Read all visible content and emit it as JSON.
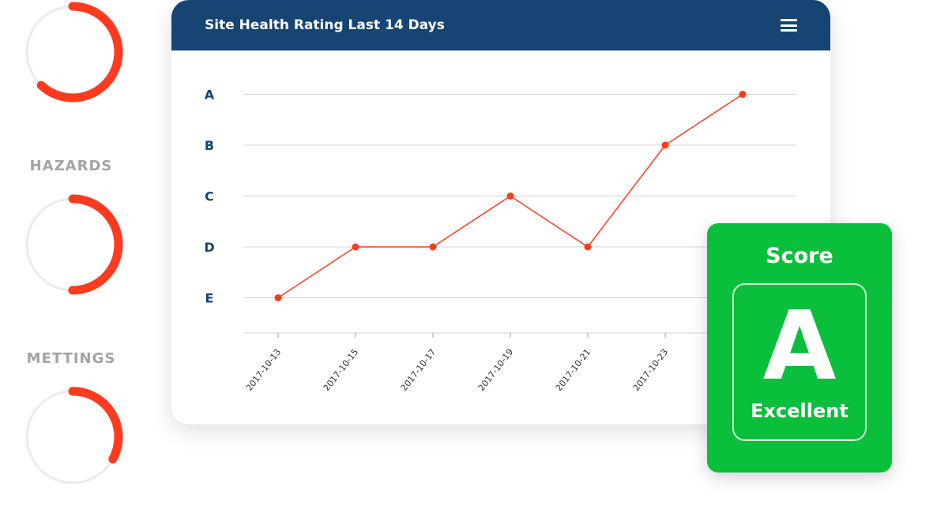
{
  "gauges": [
    {
      "label": "",
      "fraction": 0.62
    },
    {
      "label": "HAZARDS",
      "fraction": 0.5
    },
    {
      "label": "METTINGS",
      "fraction": 0.33
    }
  ],
  "colors": {
    "accent": "#ff3b1f",
    "track": "#ebebeb",
    "header": "#164473",
    "axis_label": "#164473",
    "score_bg": "#0abf3c"
  },
  "card": {
    "title": "Site Health Rating Last 14 Days",
    "menu_icon": "hamburger-menu-icon"
  },
  "chart_data": {
    "type": "line",
    "title": "Site Health Rating Last 14 Days",
    "xlabel": "",
    "ylabel": "",
    "y_categories": [
      "E",
      "D",
      "C",
      "B",
      "A"
    ],
    "x_ticks": [
      "2017-10-13",
      "2017-10-15",
      "2017-10-17",
      "2017-10-19",
      "2017-10-21",
      "2017-10-23"
    ],
    "grid": true,
    "series": [
      {
        "points": [
          {
            "x": "2017-10-13",
            "y": "E"
          },
          {
            "x": "2017-10-15",
            "y": "D"
          },
          {
            "x": "2017-10-17",
            "y": "D"
          },
          {
            "x": "2017-10-19",
            "y": "C"
          },
          {
            "x": "2017-10-21",
            "y": "D"
          },
          {
            "x": "2017-10-23",
            "y": "B"
          },
          {
            "x": "2017-10-25",
            "y": "A"
          }
        ]
      }
    ]
  },
  "score": {
    "title": "Score",
    "grade": "A",
    "description": "Excellent"
  }
}
